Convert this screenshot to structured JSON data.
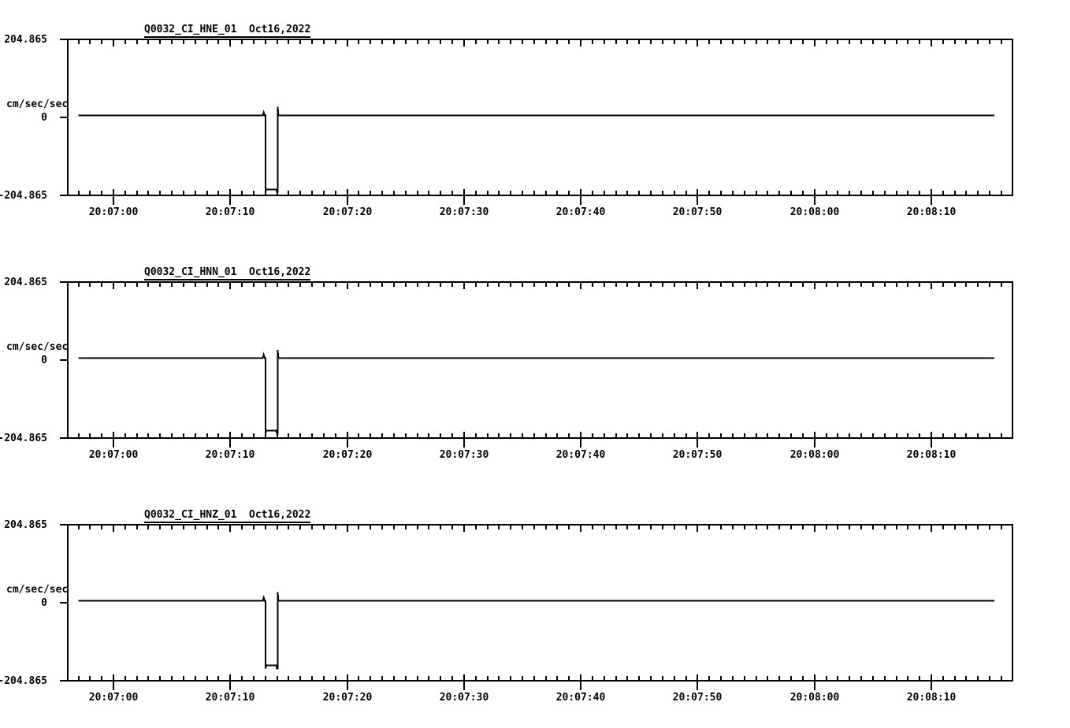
{
  "page": {
    "background": "#ffffff"
  },
  "colors": {
    "line": "#000000",
    "text": "#000000"
  },
  "time_axis": {
    "reference_time": "20:07:00",
    "xlim_s": [
      -3.94,
      76.94
    ],
    "minor_tick_interval_s": 1,
    "major_tick_interval_s": 10,
    "major_ticks": [
      {
        "t": 0,
        "label": "20:07:00"
      },
      {
        "t": 10,
        "label": "20:07:10"
      },
      {
        "t": 20,
        "label": "20:07:20"
      },
      {
        "t": 30,
        "label": "20:07:30"
      },
      {
        "t": 40,
        "label": "20:07:40"
      },
      {
        "t": 50,
        "label": "20:07:50"
      },
      {
        "t": 60,
        "label": "20:08:00"
      },
      {
        "t": 70,
        "label": "20:08:10"
      }
    ]
  },
  "chart_data": [
    {
      "type": "line",
      "title": "Q0032_CI_HNE_01  Oct16,2022",
      "station_channel": "Q0032_CI_HNE_01",
      "date": "Oct16,2022",
      "ylabel": "cm/sec/sec",
      "ylim": [
        -204.865,
        204.865
      ],
      "yticks": [
        {
          "value": 204.865,
          "label": "204.865"
        },
        {
          "value": 0,
          "label": "0"
        },
        {
          "value": -204.865,
          "label": "-204.865"
        }
      ],
      "grid": false,
      "legend": false,
      "series": [
        {
          "name": "Q0032_CI_HNE_01",
          "points": [
            [
              -3.0,
              5
            ],
            [
              12.78,
              5
            ],
            [
              12.86,
              13
            ],
            [
              12.94,
              5
            ],
            [
              13.0,
              5
            ],
            [
              13.0,
              -196
            ],
            [
              13.08,
              -189
            ],
            [
              13.94,
              -189
            ],
            [
              14.0,
              -196
            ],
            [
              14.05,
              -196
            ],
            [
              14.05,
              28
            ],
            [
              14.13,
              5
            ],
            [
              75.4,
              5
            ]
          ]
        }
      ]
    },
    {
      "type": "line",
      "title": "Q0032_CI_HNN_01  Oct16,2022",
      "station_channel": "Q0032_CI_HNN_01",
      "date": "Oct16,2022",
      "ylabel": "cm/sec/sec",
      "ylim": [
        -204.865,
        204.865
      ],
      "yticks": [
        {
          "value": 204.865,
          "label": "204.865"
        },
        {
          "value": 0,
          "label": "0"
        },
        {
          "value": -204.865,
          "label": "-204.865"
        }
      ],
      "grid": false,
      "legend": false,
      "series": [
        {
          "name": "Q0032_CI_HNN_01",
          "points": [
            [
              -3.0,
              5
            ],
            [
              12.78,
              5
            ],
            [
              12.86,
              14
            ],
            [
              12.94,
              5
            ],
            [
              13.0,
              5
            ],
            [
              13.0,
              -193
            ],
            [
              13.08,
              -185
            ],
            [
              13.94,
              -185
            ],
            [
              14.0,
              -193
            ],
            [
              14.05,
              -193
            ],
            [
              14.05,
              27
            ],
            [
              14.13,
              5
            ],
            [
              75.4,
              5
            ]
          ]
        }
      ]
    },
    {
      "type": "line",
      "title": "Q0032_CI_HNZ_01  Oct16,2022",
      "station_channel": "Q0032_CI_HNZ_01",
      "date": "Oct16,2022",
      "ylabel": "cm/sec/sec",
      "ylim": [
        -204.865,
        204.865
      ],
      "yticks": [
        {
          "value": 204.865,
          "label": "204.865"
        },
        {
          "value": 0,
          "label": "0"
        },
        {
          "value": -204.865,
          "label": "-204.865"
        }
      ],
      "grid": false,
      "legend": false,
      "series": [
        {
          "name": "Q0032_CI_HNZ_01",
          "points": [
            [
              -3.0,
              5
            ],
            [
              12.78,
              5
            ],
            [
              12.86,
              13
            ],
            [
              12.94,
              5
            ],
            [
              13.0,
              5
            ],
            [
              13.0,
              -173
            ],
            [
              13.08,
              -165
            ],
            [
              13.94,
              -165
            ],
            [
              14.0,
              -173
            ],
            [
              14.05,
              -173
            ],
            [
              14.05,
              28
            ],
            [
              14.13,
              5
            ],
            [
              75.4,
              5
            ]
          ]
        }
      ]
    }
  ]
}
